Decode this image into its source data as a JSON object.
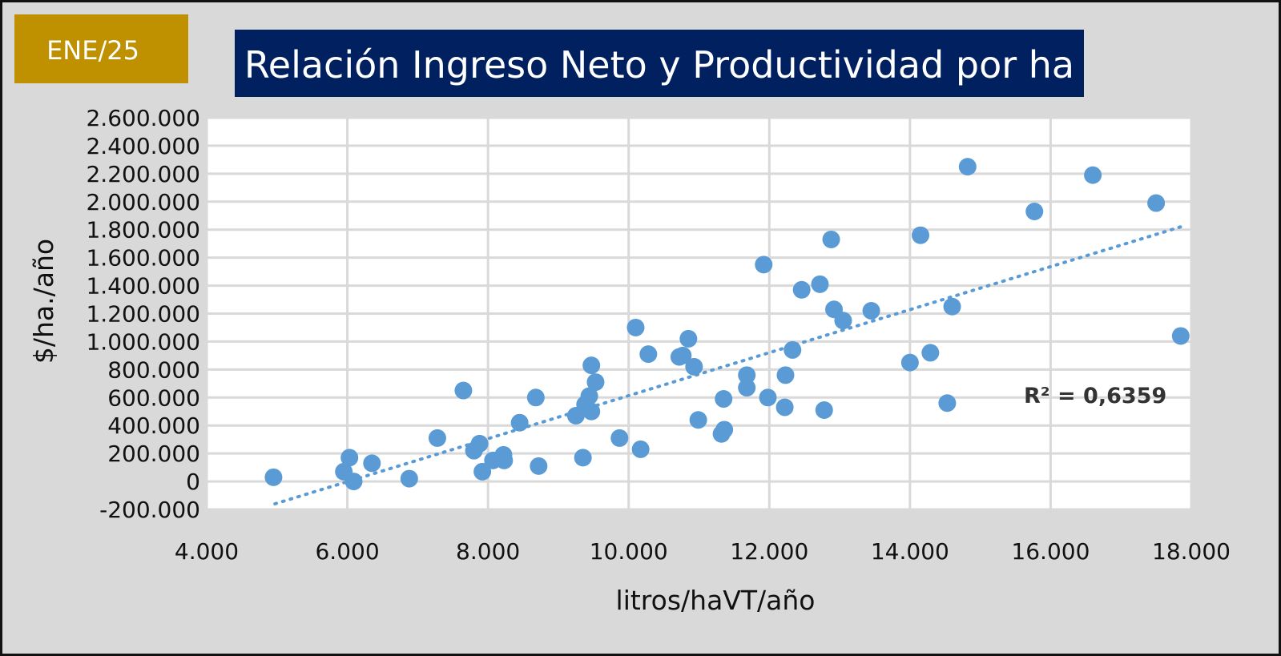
{
  "badge": {
    "label": "ENE/25"
  },
  "colors": {
    "background": "#d9d9d9",
    "plot_area": "#ffffff",
    "grid": "#d9d9d9",
    "badge": "#bf9000",
    "title_box": "#002060",
    "point": "#5b9bd5",
    "trendline": "#5b9bd5",
    "text": "#111111"
  },
  "chart_data": {
    "type": "scatter",
    "title": "Relación Ingreso Neto y Productividad por ha",
    "xlabel": "litros/haVT/año",
    "ylabel": "$/ha./año",
    "xlim": [
      4000,
      18000
    ],
    "ylim": [
      -200000,
      2600000
    ],
    "x_ticks": [
      4000,
      6000,
      8000,
      10000,
      12000,
      14000,
      16000,
      18000
    ],
    "x_tick_labels": [
      "4.000",
      "6.000",
      "8.000",
      "10.000",
      "12.000",
      "14.000",
      "16.000",
      "18.000"
    ],
    "y_ticks": [
      -200000,
      0,
      200000,
      400000,
      600000,
      800000,
      1000000,
      1200000,
      1400000,
      1600000,
      1800000,
      2000000,
      2200000,
      2400000,
      2600000
    ],
    "y_tick_labels": [
      "-200.000",
      "0",
      "200.000",
      "400.000",
      "600.000",
      "800.000",
      "1.000.000",
      "1.200.000",
      "1.400.000",
      "1.600.000",
      "1.800.000",
      "2.000.000",
      "2.200.000",
      "2.400.000",
      "2.600.000"
    ],
    "grid": true,
    "trendline": {
      "type": "linear",
      "r2_label": "R² = 0,6359",
      "start": [
        4970,
        -160000
      ],
      "end": [
        17850,
        1820000
      ]
    },
    "points": [
      [
        4950,
        30000
      ],
      [
        5950,
        70000
      ],
      [
        6030,
        170000
      ],
      [
        6090,
        0
      ],
      [
        6350,
        130000
      ],
      [
        6880,
        20000
      ],
      [
        7280,
        310000
      ],
      [
        7650,
        650000
      ],
      [
        7800,
        220000
      ],
      [
        7880,
        270000
      ],
      [
        7920,
        70000
      ],
      [
        8070,
        150000
      ],
      [
        8220,
        190000
      ],
      [
        8230,
        150000
      ],
      [
        8450,
        420000
      ],
      [
        8680,
        600000
      ],
      [
        8720,
        110000
      ],
      [
        9250,
        470000
      ],
      [
        9350,
        170000
      ],
      [
        9380,
        550000
      ],
      [
        9440,
        610000
      ],
      [
        9470,
        500000
      ],
      [
        9470,
        830000
      ],
      [
        9530,
        710000
      ],
      [
        9870,
        310000
      ],
      [
        10100,
        1100000
      ],
      [
        10170,
        230000
      ],
      [
        10280,
        910000
      ],
      [
        10720,
        890000
      ],
      [
        10770,
        900000
      ],
      [
        10850,
        1020000
      ],
      [
        10930,
        820000
      ],
      [
        10990,
        440000
      ],
      [
        11320,
        340000
      ],
      [
        11350,
        590000
      ],
      [
        11360,
        370000
      ],
      [
        11680,
        760000
      ],
      [
        11680,
        670000
      ],
      [
        11920,
        1550000
      ],
      [
        11980,
        600000
      ],
      [
        12220,
        530000
      ],
      [
        12230,
        760000
      ],
      [
        12330,
        940000
      ],
      [
        12460,
        1370000
      ],
      [
        12720,
        1410000
      ],
      [
        12780,
        510000
      ],
      [
        12880,
        1730000
      ],
      [
        12920,
        1230000
      ],
      [
        13050,
        1150000
      ],
      [
        13450,
        1220000
      ],
      [
        14000,
        850000
      ],
      [
        14150,
        1760000
      ],
      [
        14290,
        920000
      ],
      [
        14530,
        560000
      ],
      [
        14600,
        1250000
      ],
      [
        14820,
        2250000
      ],
      [
        15770,
        1930000
      ],
      [
        16600,
        2190000
      ],
      [
        17500,
        1990000
      ],
      [
        17850,
        1040000
      ]
    ]
  }
}
